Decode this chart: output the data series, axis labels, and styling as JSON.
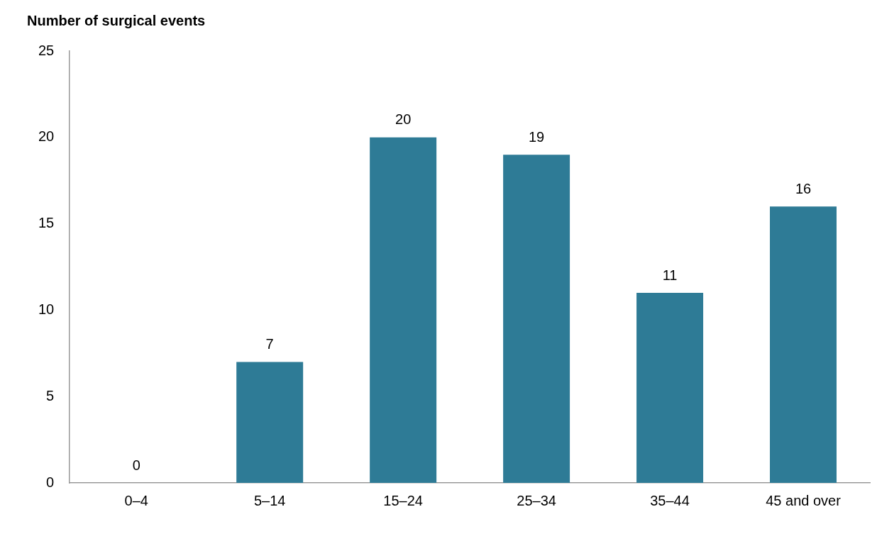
{
  "chart_data": {
    "type": "bar",
    "ylabel": "Number of surgical events",
    "categories": [
      "0–4",
      "5–14",
      "15–24",
      "25–34",
      "35–44",
      "45 and over"
    ],
    "values": [
      0,
      7,
      20,
      19,
      11,
      16
    ],
    "color": "#2e7b96",
    "ylim": [
      0,
      25
    ],
    "yticks": [
      0,
      5,
      10,
      15,
      20,
      25
    ],
    "grid": false,
    "legend": false,
    "data_labels": true
  }
}
